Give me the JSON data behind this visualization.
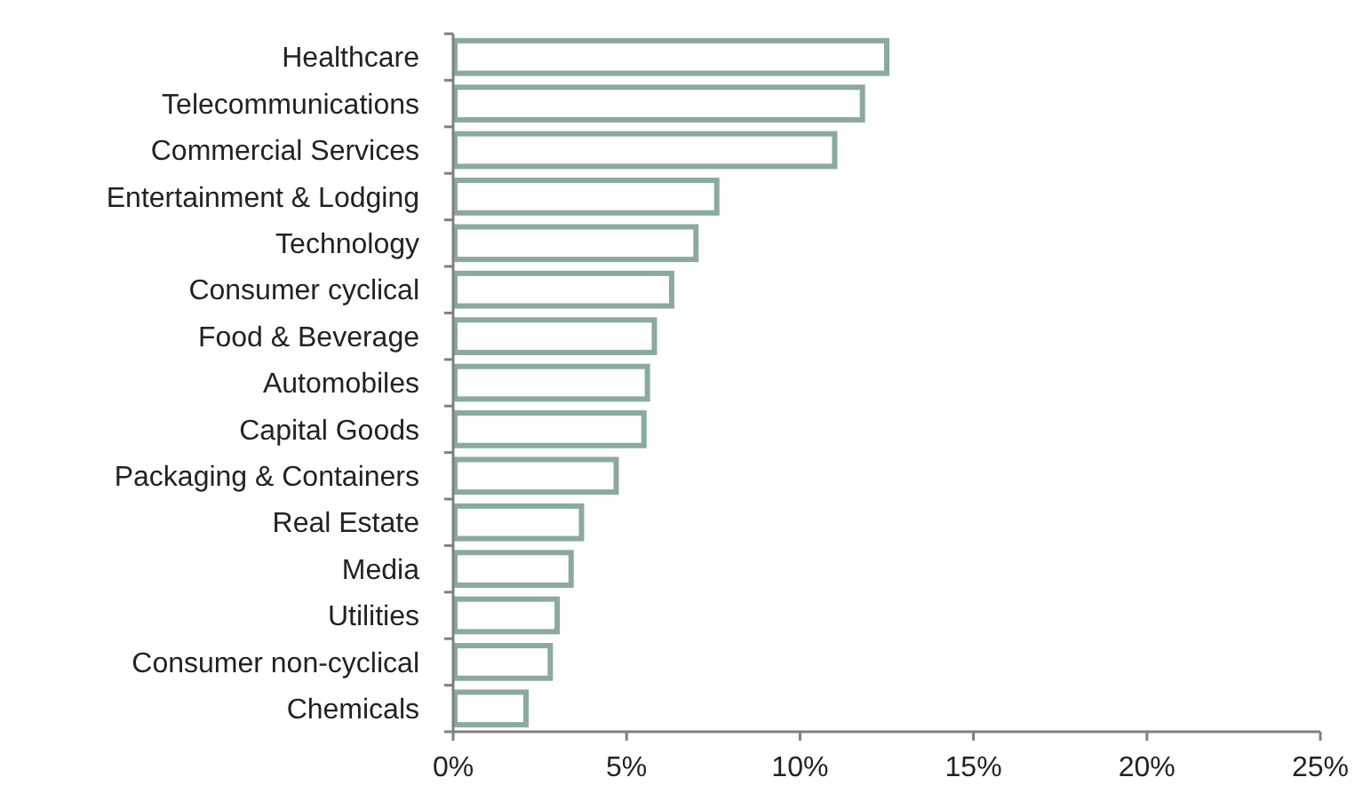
{
  "chart_data": {
    "type": "bar",
    "orientation": "horizontal",
    "categories": [
      "Healthcare",
      "Telecommunications",
      "Commercial Services",
      "Entertainment & Lodging",
      "Technology",
      "Consumer cyclical",
      "Food & Beverage",
      "Automobiles",
      "Capital Goods",
      "Packaging & Containers",
      "Real Estate",
      "Media",
      "Utilities",
      "Consumer non-cyclical",
      "Chemicals"
    ],
    "values": [
      12.5,
      11.8,
      11.0,
      7.6,
      7.0,
      6.3,
      5.8,
      5.6,
      5.5,
      4.7,
      3.7,
      3.4,
      3.0,
      2.8,
      2.1
    ],
    "color": "#8aab9c",
    "xlim": [
      0,
      25
    ],
    "xticks": [
      {
        "value": 0,
        "label": "0%"
      },
      {
        "value": 5,
        "label": "5%"
      },
      {
        "value": 10,
        "label": "10%"
      },
      {
        "value": 15,
        "label": "15%"
      },
      {
        "value": 20,
        "label": "20%"
      },
      {
        "value": 25,
        "label": "25%"
      }
    ],
    "grid": false
  }
}
